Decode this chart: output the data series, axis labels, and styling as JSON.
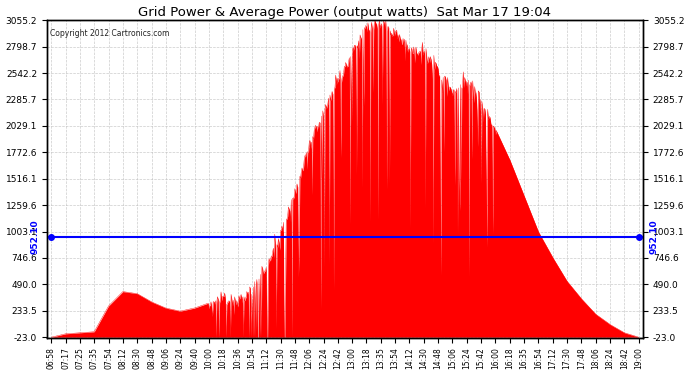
{
  "title": "Grid Power & Average Power (output watts)  Sat Mar 17 19:04",
  "copyright": "Copyright 2012 Cartronics.com",
  "average_value": 952.1,
  "avg_label": "952.10",
  "yticks": [
    3055.2,
    2798.7,
    2542.2,
    2285.7,
    2029.1,
    1772.6,
    1516.1,
    1259.6,
    1003.1,
    746.6,
    490.0,
    233.5,
    -23.0
  ],
  "ymin": -23.0,
  "ymax": 3055.2,
  "bg_color": "#ffffff",
  "fill_color": "#ff0000",
  "avg_line_color": "#0000ff",
  "grid_color": "#c0c0c0",
  "title_color": "#000000",
  "xtick_labels": [
    "06:58",
    "07:17",
    "07:25",
    "07:35",
    "07:54",
    "08:12",
    "08:30",
    "08:48",
    "09:06",
    "09:24",
    "09:40",
    "10:00",
    "10:18",
    "10:36",
    "10:54",
    "11:12",
    "11:30",
    "11:48",
    "12:06",
    "12:24",
    "12:42",
    "13:00",
    "13:18",
    "13:35",
    "13:54",
    "14:12",
    "14:30",
    "14:48",
    "15:06",
    "15:24",
    "15:42",
    "16:00",
    "16:18",
    "16:35",
    "16:54",
    "17:12",
    "17:30",
    "17:48",
    "18:06",
    "18:24",
    "18:42",
    "19:00"
  ]
}
